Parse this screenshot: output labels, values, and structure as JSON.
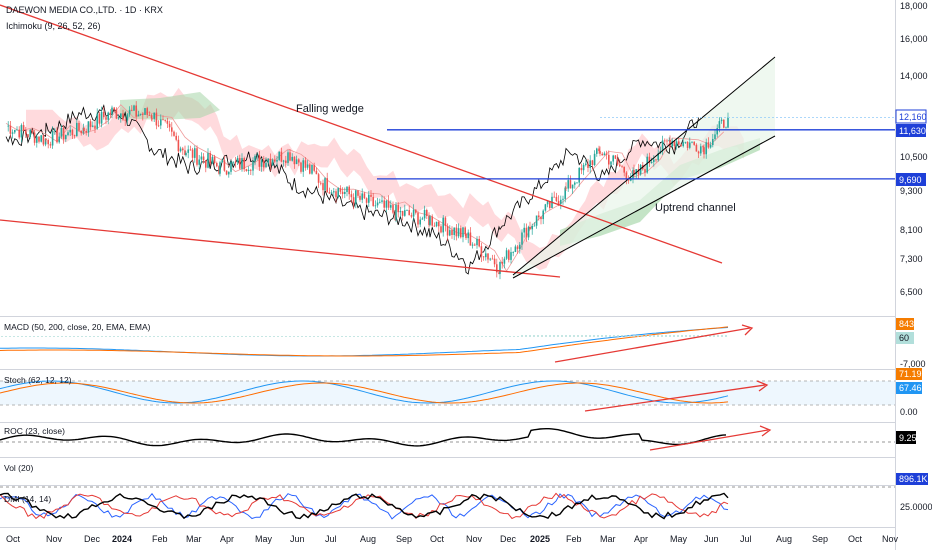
{
  "header": {
    "symbol_line": "DAEWON MEDIA CO.,LTD. · 1D · KRX",
    "indicator_line": "Ichimoku (9, 26, 52, 26)"
  },
  "annotations": {
    "falling_wedge": "Falling wedge",
    "uptrend_channel": "Uptrend channel"
  },
  "price_axis": {
    "ticks": [
      "18,000",
      "16,000",
      "14,000",
      "10,500",
      "9,300",
      "8,100",
      "7,300",
      "6,500"
    ],
    "labels": [
      {
        "text": "12,160",
        "style": "outline"
      },
      {
        "text": "11,630",
        "style": "blue"
      },
      {
        "text": "9,690",
        "style": "blue"
      }
    ]
  },
  "panes": {
    "macd": {
      "title": "MACD (50, 200, close, 20, EMA, EMA)",
      "tick": "-7,000",
      "labels": [
        {
          "text": "843",
          "color": "#f57c00"
        },
        {
          "text": "60",
          "color": "#b2dfdb"
        }
      ]
    },
    "stoch": {
      "title": "Stoch (62, 12, 12)",
      "tick": "0.00",
      "labels": [
        {
          "text": "71.19",
          "color": "#f57c00"
        },
        {
          "text": "67.46",
          "color": "#2196f3"
        }
      ]
    },
    "roc": {
      "title": "ROC (23, close)",
      "labels": [
        {
          "text": "9.25",
          "color": "#000000"
        }
      ]
    },
    "vol": {
      "title": "Vol (20)",
      "labels": [
        {
          "text": "896.1K",
          "color": "#ffffff"
        }
      ]
    },
    "dmi": {
      "title": "DMI (14, 14)",
      "tick": "25.0000"
    }
  },
  "time_axis": [
    "Oct",
    "Nov",
    "Dec",
    "2024",
    "Feb",
    "Mar",
    "Apr",
    "May",
    "Jun",
    "Jul",
    "Aug",
    "Sep",
    "Oct",
    "Nov",
    "Dec",
    "2025",
    "Feb",
    "Mar",
    "Apr",
    "May",
    "Jun",
    "Jul",
    "Aug",
    "Sep",
    "Oct",
    "Nov"
  ],
  "colors": {
    "up": "#26a69a",
    "down": "#ef5350",
    "blue_line": "#1e3fd8",
    "trend_red": "#e53935",
    "cloud_bull": "#a5d6a7",
    "cloud_bear": "#ffcdd2",
    "axis_label_blue": "#1e3fd8"
  },
  "chart_data": [
    {
      "type": "candlestick",
      "title": "DAEWON MEDIA CO.,LTD. · 1D · KRX",
      "y_axis_ticks": [
        18000,
        16000,
        14000,
        10500,
        9300,
        8100,
        7300,
        6500
      ],
      "ylim": [
        6200,
        18300
      ],
      "x_range": [
        "2023-10",
        "2025-11"
      ],
      "approx_close_path": [
        {
          "date": "2023-10",
          "close": 11800
        },
        {
          "date": "2023-11",
          "close": 11200
        },
        {
          "date": "2023-12",
          "close": 11700
        },
        {
          "date": "2024-01",
          "close": 12400
        },
        {
          "date": "2024-02",
          "close": 12300
        },
        {
          "date": "2024-03",
          "close": 10700
        },
        {
          "date": "2024-04",
          "close": 10100
        },
        {
          "date": "2024-05",
          "close": 10300
        },
        {
          "date": "2024-06",
          "close": 10600
        },
        {
          "date": "2024-07",
          "close": 9500
        },
        {
          "date": "2024-08",
          "close": 9000
        },
        {
          "date": "2024-09",
          "close": 8600
        },
        {
          "date": "2024-10",
          "close": 8400
        },
        {
          "date": "2024-11",
          "close": 7900
        },
        {
          "date": "2024-12",
          "close": 7100
        },
        {
          "date": "2025-01",
          "close": 8200
        },
        {
          "date": "2025-02",
          "close": 9300
        },
        {
          "date": "2025-03",
          "close": 10700
        },
        {
          "date": "2025-04",
          "close": 9700
        },
        {
          "date": "2025-05",
          "close": 11200
        },
        {
          "date": "2025-06",
          "close": 10900
        },
        {
          "date": "2025-06-end",
          "close": 12160
        }
      ],
      "horizontal_levels": [
        11630,
        9690
      ],
      "last_price": 12160
    },
    {
      "type": "line",
      "title": "MACD (50, 200, close, 20, EMA, EMA)",
      "last_values": {
        "macd": 843,
        "signal": 60
      },
      "axis_tick": -7000
    },
    {
      "type": "line",
      "title": "Stoch (62, 12, 12)",
      "last_values": {
        "k": 71.19,
        "d": 67.46
      },
      "axis_tick": 0.0
    },
    {
      "type": "line",
      "title": "ROC (23, close)",
      "last_values": {
        "roc": 9.25
      }
    },
    {
      "type": "bar",
      "title": "Vol (20)",
      "last_values": {
        "volume": "896.1K"
      }
    },
    {
      "type": "line",
      "title": "DMI (14, 14)",
      "axis_tick": 25.0
    }
  ]
}
